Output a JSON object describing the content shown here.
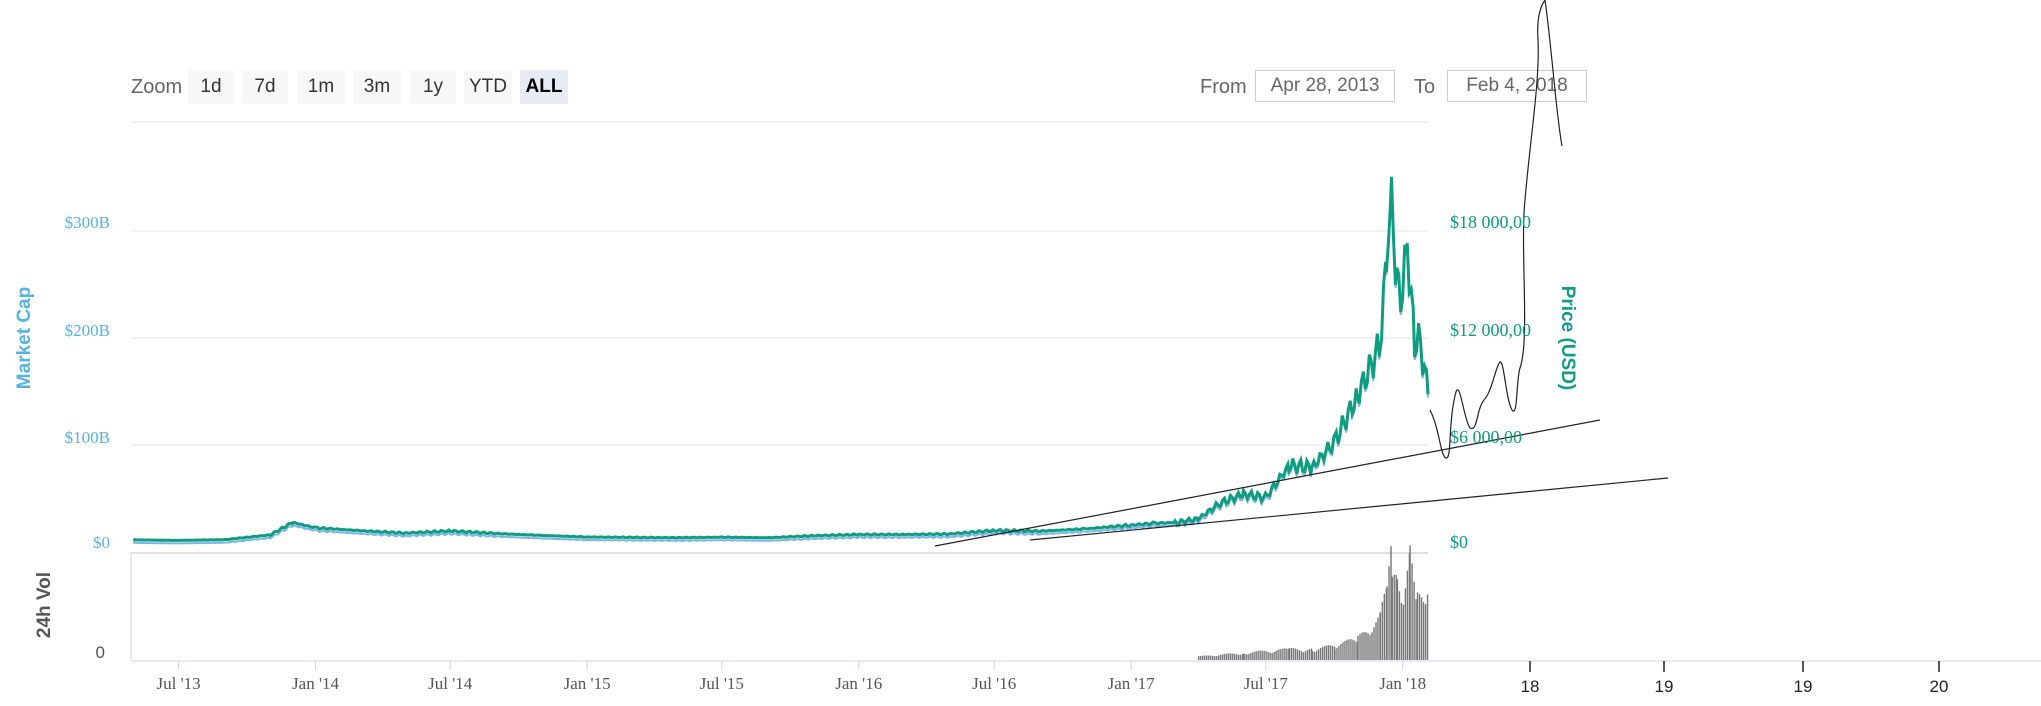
{
  "toolbar": {
    "zoom_label": "Zoom",
    "zoom_buttons": [
      {
        "label": "1d",
        "active": false
      },
      {
        "label": "7d",
        "active": false
      },
      {
        "label": "1m",
        "active": false
      },
      {
        "label": "3m",
        "active": false
      },
      {
        "label": "1y",
        "active": false
      },
      {
        "label": "YTD",
        "active": false
      },
      {
        "label": "ALL",
        "active": true
      }
    ],
    "from_label": "From",
    "from_value": "Apr 28, 2013",
    "to_label": "To",
    "to_value": "Feb 4, 2018"
  },
  "chart_data": {
    "type": "line",
    "y_left_label": "Market Cap",
    "y_left_ticks": [
      "$0",
      "$100B",
      "$200B",
      "$300B"
    ],
    "y_right_label": "Price (USD)",
    "y_right_ticks": [
      "$0",
      "$6 000,00",
      "$12 000,00",
      "$18 000,00"
    ],
    "volume_label": "24h Vol",
    "volume_ticks": [
      "0"
    ],
    "x_ticks": [
      "Jul '13",
      "Jan '14",
      "Jul '14",
      "Jan '15",
      "Jul '15",
      "Jan '16",
      "Jul '16",
      "Jan '17",
      "Jul '17",
      "Jan '18"
    ],
    "annotation_ticks": [
      "18",
      "19",
      "19",
      "20"
    ],
    "price_ylim": [
      0,
      20000
    ],
    "grid": true,
    "colors": {
      "market_cap": "#7cb5ec",
      "price": "#0f9d80",
      "volume": "#777777",
      "axis_left": "#55b3e0",
      "axis_right": "#0f9d80"
    },
    "series": [
      {
        "name": "Price (USD)",
        "x": [
          "2013-05",
          "2013-07",
          "2013-09",
          "2013-11",
          "2013-12",
          "2014-01",
          "2014-03",
          "2014-05",
          "2014-07",
          "2014-09",
          "2014-11",
          "2015-01",
          "2015-03",
          "2015-05",
          "2015-07",
          "2015-09",
          "2015-11",
          "2016-01",
          "2016-03",
          "2016-05",
          "2016-07",
          "2016-09",
          "2016-11",
          "2017-01",
          "2017-02",
          "2017-03",
          "2017-04",
          "2017-05",
          "2017-06",
          "2017-07",
          "2017-08",
          "2017-09",
          "2017-10",
          "2017-11",
          "2017-12-01",
          "2017-12-10",
          "2017-12-17",
          "2017-12-24",
          "2018-01-01",
          "2018-01-07",
          "2018-01-17",
          "2018-01-25",
          "2018-02-04"
        ],
        "values": [
          120,
          90,
          130,
          400,
          1100,
          800,
          640,
          500,
          620,
          480,
          370,
          280,
          260,
          240,
          270,
          240,
          350,
          420,
          420,
          450,
          650,
          610,
          740,
          950,
          1050,
          1100,
          1300,
          2200,
          2700,
          2500,
          4300,
          4200,
          5600,
          8200,
          11000,
          15500,
          19000,
          14500,
          14000,
          16800,
          11300,
          11200,
          8300
        ]
      },
      {
        "name": "Volume (24h)",
        "x": [
          "2017-04",
          "2017-06",
          "2017-08",
          "2017-09",
          "2017-10",
          "2017-11",
          "2017-12-01",
          "2017-12-10",
          "2017-12-17",
          "2017-12-24",
          "2018-01-01",
          "2018-01-10",
          "2018-01-20",
          "2018-02-04"
        ],
        "values": [
          1,
          2,
          3,
          3,
          4,
          6,
          12,
          22,
          32,
          24,
          20,
          30,
          18,
          22
        ]
      }
    ]
  }
}
